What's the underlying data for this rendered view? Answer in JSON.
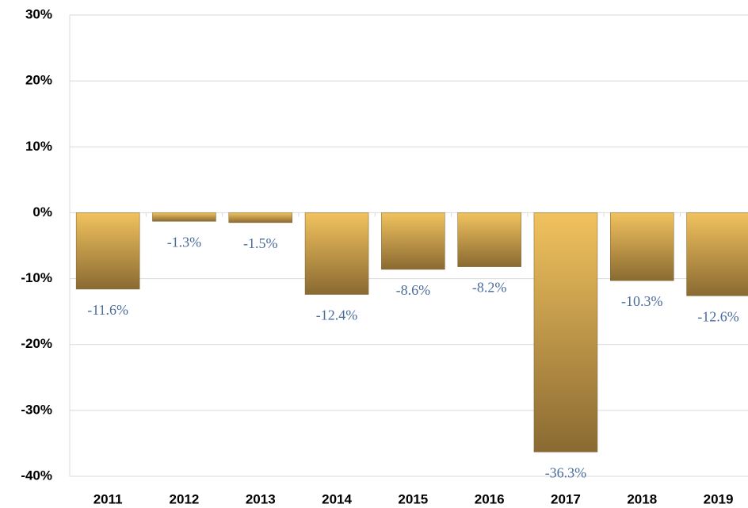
{
  "chart_data": {
    "type": "bar",
    "categories": [
      "2011",
      "2012",
      "2013",
      "2014",
      "2015",
      "2016",
      "2017",
      "2018",
      "2019"
    ],
    "values": [
      -11.6,
      -1.3,
      -1.5,
      -12.4,
      -8.6,
      -8.2,
      -36.3,
      -10.3,
      -12.6
    ],
    "value_labels": [
      "-11.6%",
      "-1.3%",
      "-1.5%",
      "-12.4%",
      "-8.6%",
      "-8.2%",
      "-36.3%",
      "-10.3%",
      "-12.6%"
    ],
    "ylim": [
      -40,
      30
    ],
    "yticks": [
      {
        "value": -40,
        "label": "-40%"
      },
      {
        "value": -30,
        "label": "-30%"
      },
      {
        "value": -20,
        "label": "-20%"
      },
      {
        "value": -10,
        "label": "-10%"
      },
      {
        "value": 0,
        "label": "0%"
      },
      {
        "value": 10,
        "label": "10%"
      },
      {
        "value": 20,
        "label": "20%"
      },
      {
        "value": 30,
        "label": "30%"
      }
    ],
    "grid": true,
    "color": "#c9a24a"
  }
}
